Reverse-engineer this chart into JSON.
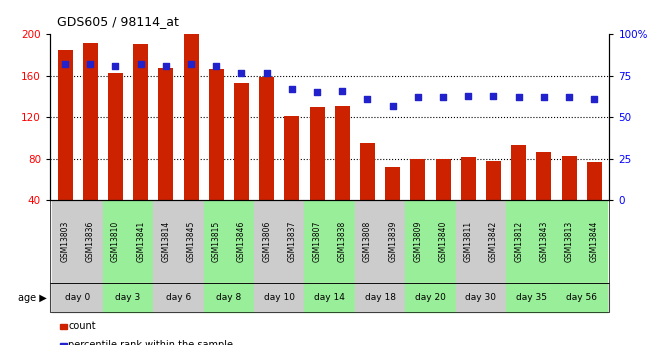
{
  "title": "GDS605 / 98114_at",
  "gsm_labels": [
    "GSM13803",
    "GSM13836",
    "GSM13810",
    "GSM13841",
    "GSM13814",
    "GSM13845",
    "GSM13815",
    "GSM13846",
    "GSM13806",
    "GSM13837",
    "GSM13807",
    "GSM13838",
    "GSM13808",
    "GSM13839",
    "GSM13809",
    "GSM13840",
    "GSM13811",
    "GSM13842",
    "GSM13812",
    "GSM13843",
    "GSM13813",
    "GSM13844"
  ],
  "day_groups": [
    {
      "label": "day 0",
      "indices": [
        0,
        1
      ],
      "color": "#cccccc"
    },
    {
      "label": "day 3",
      "indices": [
        2,
        3
      ],
      "color": "#99ee99"
    },
    {
      "label": "day 6",
      "indices": [
        4,
        5
      ],
      "color": "#cccccc"
    },
    {
      "label": "day 8",
      "indices": [
        6,
        7
      ],
      "color": "#99ee99"
    },
    {
      "label": "day 10",
      "indices": [
        8,
        9
      ],
      "color": "#cccccc"
    },
    {
      "label": "day 14",
      "indices": [
        10,
        11
      ],
      "color": "#99ee99"
    },
    {
      "label": "day 18",
      "indices": [
        12,
        13
      ],
      "color": "#cccccc"
    },
    {
      "label": "day 20",
      "indices": [
        14,
        15
      ],
      "color": "#99ee99"
    },
    {
      "label": "day 30",
      "indices": [
        16,
        17
      ],
      "color": "#cccccc"
    },
    {
      "label": "day 35",
      "indices": [
        18,
        19
      ],
      "color": "#99ee99"
    },
    {
      "label": "day 56",
      "indices": [
        20,
        21
      ],
      "color": "#99ee99"
    }
  ],
  "bar_values": [
    185,
    192,
    163,
    191,
    168,
    200,
    167,
    153,
    159,
    121,
    130,
    131,
    95,
    72,
    80,
    80,
    82,
    78,
    93,
    86,
    83,
    77
  ],
  "percentile_values": [
    82,
    82,
    81,
    82,
    81,
    82,
    81,
    77,
    77,
    67,
    65,
    66,
    61,
    57,
    62,
    62,
    63,
    63,
    62,
    62,
    62,
    61
  ],
  "bar_color": "#cc2200",
  "dot_color": "#2222cc",
  "bar_bottom": 40,
  "left_ylim": [
    40,
    200
  ],
  "left_yticks": [
    40,
    80,
    120,
    160,
    200
  ],
  "right_ylim": [
    0,
    100
  ],
  "right_yticks": [
    0,
    25,
    50,
    75,
    100
  ],
  "right_yticklabels": [
    "0",
    "25",
    "50",
    "75",
    "100%"
  ],
  "bg_color": "#ffffff",
  "grid_vals": [
    80,
    120,
    160
  ],
  "legend_count_label": "count",
  "legend_pct_label": "percentile rank within the sample"
}
